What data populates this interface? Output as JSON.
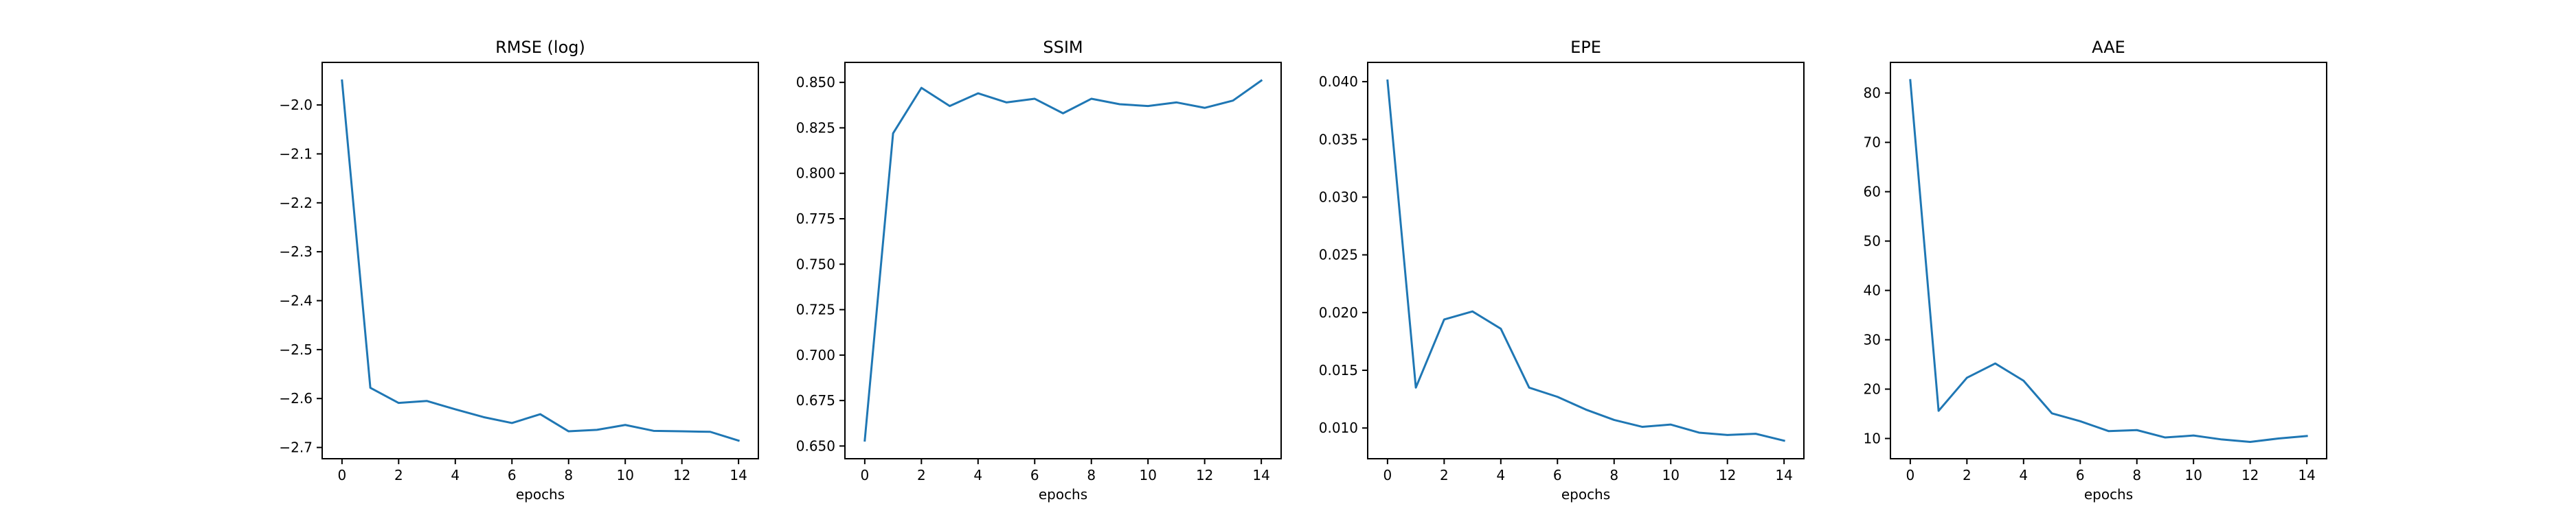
{
  "colors": {
    "line": "#1f77b4",
    "axes": "#000000",
    "background": "#ffffff"
  },
  "chart_data": [
    {
      "type": "line",
      "title": "RMSE (log)",
      "xlabel": "epochs",
      "ylabel": "",
      "x": [
        0,
        1,
        2,
        3,
        4,
        5,
        6,
        7,
        8,
        9,
        10,
        11,
        12,
        13,
        14
      ],
      "values": [
        -1.95,
        -2.578,
        -2.609,
        -2.605,
        -2.622,
        -2.638,
        -2.65,
        -2.632,
        -2.667,
        -2.664,
        -2.654,
        -2.666,
        -2.667,
        -2.668,
        -2.686
      ],
      "xlim": [
        -0.7,
        14.7
      ],
      "ylim": [
        -2.723,
        -1.913
      ],
      "xticks": [
        0,
        2,
        4,
        6,
        8,
        10,
        12,
        14
      ],
      "xtick_labels": [
        "0",
        "2",
        "4",
        "6",
        "8",
        "10",
        "12",
        "14"
      ],
      "yticks": [
        -2.0,
        -2.1,
        -2.2,
        -2.3,
        -2.4,
        -2.5,
        -2.6,
        -2.7
      ],
      "ytick_labels": [
        "−2.0",
        "−2.1",
        "−2.2",
        "−2.3",
        "−2.4",
        "−2.5",
        "−2.6",
        "−2.7"
      ],
      "grid": false
    },
    {
      "type": "line",
      "title": "SSIM",
      "xlabel": "epochs",
      "ylabel": "",
      "x": [
        0,
        1,
        2,
        3,
        4,
        5,
        6,
        7,
        8,
        9,
        10,
        11,
        12,
        13,
        14
      ],
      "values": [
        0.653,
        0.822,
        0.847,
        0.837,
        0.844,
        0.839,
        0.841,
        0.833,
        0.841,
        0.838,
        0.837,
        0.839,
        0.836,
        0.84,
        0.851
      ],
      "xlim": [
        -0.7,
        14.7
      ],
      "ylim": [
        0.643,
        0.861
      ],
      "xticks": [
        0,
        2,
        4,
        6,
        8,
        10,
        12,
        14
      ],
      "xtick_labels": [
        "0",
        "2",
        "4",
        "6",
        "8",
        "10",
        "12",
        "14"
      ],
      "yticks": [
        0.65,
        0.675,
        0.7,
        0.725,
        0.75,
        0.775,
        0.8,
        0.825,
        0.85
      ],
      "ytick_labels": [
        "0.650",
        "0.675",
        "0.700",
        "0.725",
        "0.750",
        "0.775",
        "0.800",
        "0.825",
        "0.850"
      ],
      "grid": false
    },
    {
      "type": "line",
      "title": "EPE",
      "xlabel": "epochs",
      "ylabel": "",
      "x": [
        0,
        1,
        2,
        3,
        4,
        5,
        6,
        7,
        8,
        9,
        10,
        11,
        12,
        13,
        14
      ],
      "values": [
        0.0401,
        0.0135,
        0.0194,
        0.0201,
        0.0186,
        0.0135,
        0.0127,
        0.0116,
        0.0107,
        0.0101,
        0.0103,
        0.0096,
        0.0094,
        0.0095,
        0.0089
      ],
      "xlim": [
        -0.7,
        14.7
      ],
      "ylim": [
        0.00734,
        0.04167
      ],
      "xticks": [
        0,
        2,
        4,
        6,
        8,
        10,
        12,
        14
      ],
      "xtick_labels": [
        "0",
        "2",
        "4",
        "6",
        "8",
        "10",
        "12",
        "14"
      ],
      "yticks": [
        0.01,
        0.015,
        0.02,
        0.025,
        0.03,
        0.035,
        0.04
      ],
      "ytick_labels": [
        "0.010",
        "0.015",
        "0.020",
        "0.025",
        "0.030",
        "0.035",
        "0.040"
      ],
      "grid": false
    },
    {
      "type": "line",
      "title": "AAE",
      "xlabel": "epochs",
      "ylabel": "",
      "x": [
        0,
        1,
        2,
        3,
        4,
        5,
        6,
        7,
        8,
        9,
        10,
        11,
        12,
        13,
        14
      ],
      "values": [
        82.6,
        15.6,
        22.3,
        25.2,
        21.7,
        15.1,
        13.5,
        11.5,
        11.7,
        10.2,
        10.6,
        9.8,
        9.3,
        10.0,
        10.5
      ],
      "xlim": [
        -0.7,
        14.7
      ],
      "ylim": [
        5.9,
        86.2
      ],
      "xticks": [
        0,
        2,
        4,
        6,
        8,
        10,
        12,
        14
      ],
      "xtick_labels": [
        "0",
        "2",
        "4",
        "6",
        "8",
        "10",
        "12",
        "14"
      ],
      "yticks": [
        10,
        20,
        30,
        40,
        50,
        60,
        70,
        80
      ],
      "ytick_labels": [
        "10",
        "20",
        "30",
        "40",
        "50",
        "60",
        "70",
        "80"
      ],
      "grid": false
    }
  ]
}
